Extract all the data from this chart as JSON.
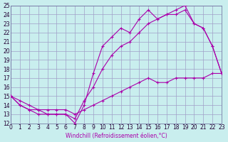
{
  "xlabel": "Windchill (Refroidissement éolien,°C)",
  "xlim": [
    0,
    23
  ],
  "ylim": [
    12,
    25
  ],
  "xticks": [
    0,
    1,
    2,
    3,
    4,
    5,
    6,
    7,
    8,
    9,
    10,
    11,
    12,
    13,
    14,
    15,
    16,
    17,
    18,
    19,
    20,
    21,
    22,
    23
  ],
  "yticks": [
    12,
    13,
    14,
    15,
    16,
    17,
    18,
    19,
    20,
    21,
    22,
    23,
    24,
    25
  ],
  "bg_color": "#c9eeee",
  "grid_color": "#a0a0c8",
  "line_color": "#aa00aa",
  "line1_x": [
    0,
    1,
    2,
    3,
    4,
    5,
    6,
    7,
    8,
    9,
    10,
    11,
    12,
    13,
    14,
    15,
    16,
    17,
    18,
    19,
    20,
    21,
    22,
    23
  ],
  "line1_y": [
    15.0,
    14.0,
    13.5,
    13.0,
    13.0,
    13.0,
    13.0,
    12.0,
    14.0,
    17.5,
    20.5,
    21.5,
    22.5,
    22.0,
    23.5,
    24.5,
    23.5,
    24.0,
    24.5,
    25.0,
    23.0,
    22.5,
    20.5,
    17.5
  ],
  "line2_x": [
    0,
    1,
    2,
    3,
    4,
    5,
    6,
    7,
    8,
    9,
    10,
    11,
    12,
    13,
    14,
    15,
    16,
    17,
    18,
    19,
    20,
    21,
    22,
    23
  ],
  "line2_y": [
    15.0,
    14.0,
    13.5,
    13.5,
    13.0,
    13.0,
    13.0,
    12.5,
    14.5,
    16.0,
    18.0,
    19.5,
    20.5,
    21.0,
    22.0,
    23.0,
    23.5,
    24.0,
    24.0,
    24.5,
    23.0,
    22.5,
    20.5,
    17.5
  ],
  "line3_x": [
    0,
    1,
    2,
    3,
    4,
    5,
    6,
    7,
    8,
    9,
    10,
    11,
    12,
    13,
    14,
    15,
    16,
    17,
    18,
    19,
    20,
    21,
    22,
    23
  ],
  "line3_y": [
    15.0,
    14.5,
    14.0,
    13.5,
    13.5,
    13.5,
    13.5,
    13.0,
    13.5,
    14.0,
    14.5,
    15.0,
    15.5,
    16.0,
    16.5,
    17.0,
    16.5,
    16.5,
    17.0,
    17.0,
    17.0,
    17.0,
    17.5,
    17.5
  ],
  "tick_fontsize": 5.5,
  "xlabel_fontsize": 5.5,
  "tick_color": "#220033",
  "spine_color": "#666699"
}
